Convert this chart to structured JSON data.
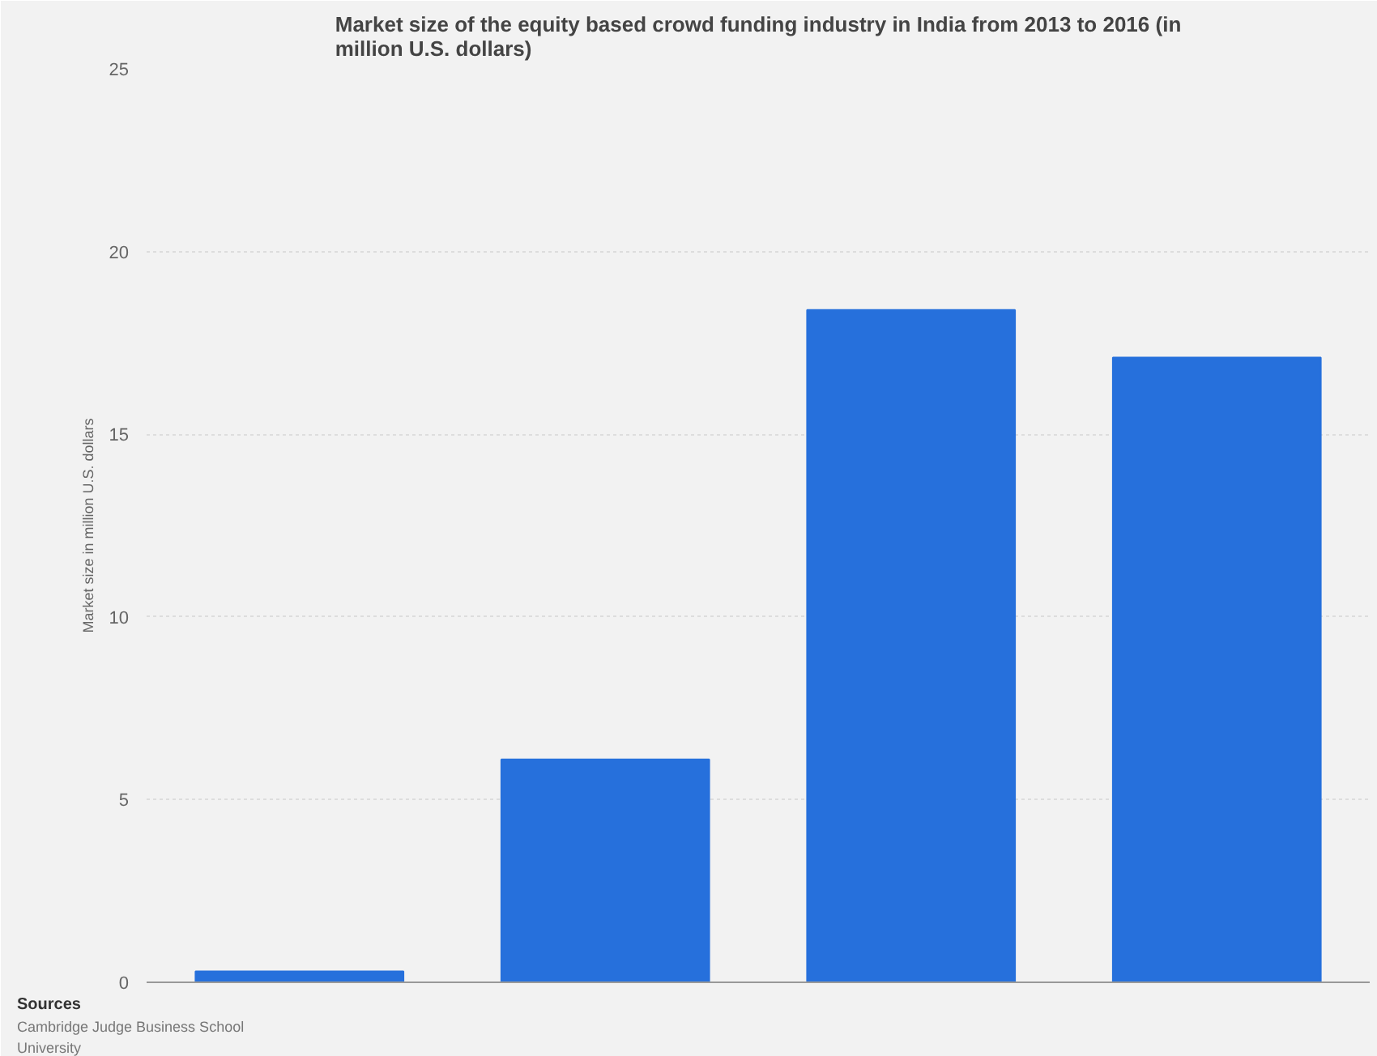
{
  "chart_data": {
    "type": "bar",
    "title": "Market size of the equity based crowd funding industry in India from 2013 to 2016 (in million U.S. dollars)",
    "ylabel": "Market size in million U.S. dollars",
    "categories": [
      null,
      null,
      null,
      null
    ],
    "values": [
      0.3,
      6.1,
      18.4,
      17.1
    ],
    "color": "#2670dc",
    "ylim": [
      0,
      25
    ],
    "yticks": [
      0,
      5,
      10,
      15,
      20,
      25
    ],
    "grid": "y",
    "annotations": [
      "Sources",
      "Cambridge Judge Business School",
      "University"
    ]
  }
}
